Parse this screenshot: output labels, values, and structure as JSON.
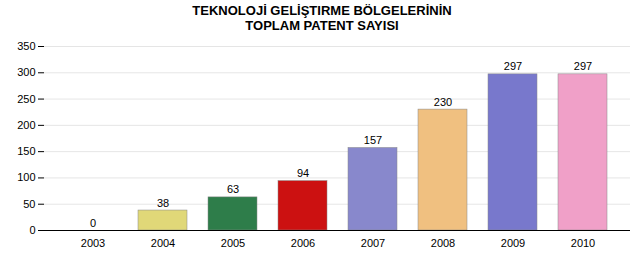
{
  "chart_data": {
    "type": "bar",
    "title": "TEKNOLOJİ GELİŞTIRME BÖLGELERİNİN",
    "subtitle": "TOPLAM PATENT SAYISI",
    "categories": [
      "2003",
      "2004",
      "2005",
      "2006",
      "2007",
      "2008",
      "2009",
      "2010"
    ],
    "values": [
      0,
      38,
      63,
      94,
      157,
      230,
      297,
      297
    ],
    "colors": [
      "#eeeea0",
      "#e0d878",
      "#2e7d4a",
      "#cc1111",
      "#8888cc",
      "#f0c080",
      "#7878cc",
      "#f0a0c8"
    ],
    "ylim": [
      0,
      350
    ],
    "yticks": [
      0,
      50,
      100,
      150,
      200,
      250,
      300,
      350
    ],
    "grid": true,
    "data_labels": true
  }
}
